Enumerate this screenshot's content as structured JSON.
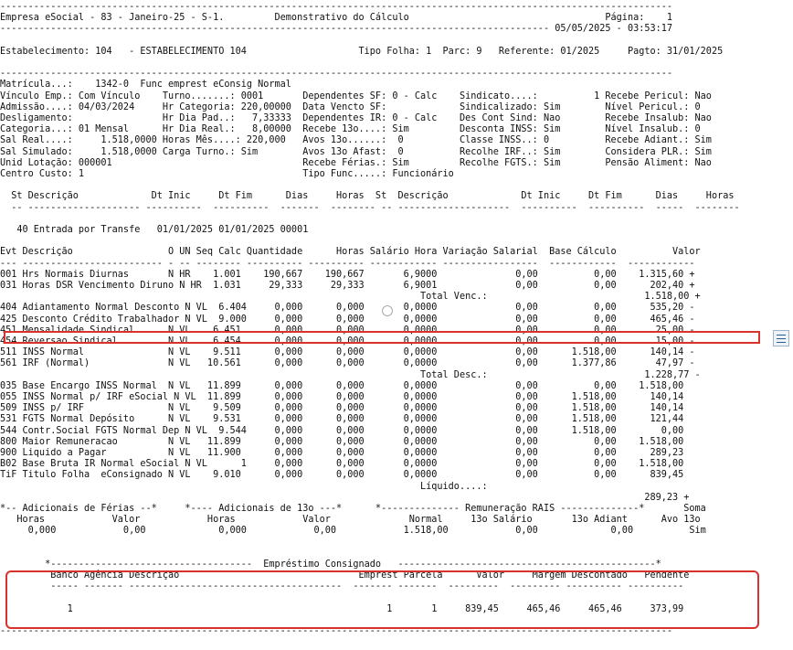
{
  "report": {
    "lines": [
      "------------------------------------------------------------------------------------------------------------------------",
      "Empresa eSocial - 83 - Janeiro-25 - S-1.         Demonstrativo do Cálculo                                   Página:    1",
      "-------------------------------------------------------------------------------------------------- 05/05/2025 - 03:53:17",
      "",
      "Estabelecimento: 104   - ESTABELECIMENTO 104                    Tipo Folha: 1  Parc: 9   Referente: 01/2025     Pagto: 31/01/2025",
      "",
      "------------------------------------------------------------------------------------------------------------------------",
      "Matrícula...:    1342-0  Func emprest eConsig Normal",
      "Vínculo Emp.: Com Vínculo    Turno.......: 0001       Dependentes SF: 0 - Calc    Sindicato....:          1 Recebe Pericul: Nao",
      "Admissão....: 04/03/2024     Hr Categoria: 220,00000  Data Vencto SF:             Sindicalizado: Sim        Nível Pericul.: 0",
      "Desligamento:                Hr Dia Pad..:   7,33333  Dependentes IR: 0 - Calc    Des Cont Sind: Nao        Recebe Insalub: Nao",
      "Categoria...: 01 Mensal      Hr Dia Real.:   8,00000  Recebe 13o....: Sim         Desconta INSS: Sim        Nível Insalub.: 0",
      "Sal Real....:     1.518,0000 Horas Mês....: 220,000   Avos 13o......:  0          Classe INSS..: 0          Recebe Adiant.: Sim",
      "Sal Simulado:     1.518,0000 Carga Turno.: Sim        Avos 13o Afast:  0          Recolhe IRF..: Sim        Considera PLR.: Sim",
      "Unid Lotação: 000001                                  Recebe Férias.: Sim         Recolhe FGTS.: Sim        Pensão Aliment: Nao",
      "Centro Custo: 1                                       Tipo Func.....: Funcionário",
      "",
      "  St Descrição             Dt Inic     Dt Fim      Dias     Horas  St  Descrição             Dt Inic     Dt Fim      Dias     Horas",
      "  -- -------------------- ----------  ----------  -------  -------- -- --------------------  ----------  ----------  -----  --------",
      "",
      "   40 Entrada por Transfe   01/01/2025 01/01/2025 00001",
      "",
      "Evt Descrição                 O UN Seq Calc Quantidade      Horas Salário Hora Variação Salarial  Base Cálculo          Valor",
      "--- ------------------------- - -- -------- ---------- ---------- ------------ -----------------  ------------  ------------",
      "001 Hrs Normais Diurnas       N HR    1.001    190,667    190,667       6,9000              0,00          0,00    1.315,60 +",
      "031 Horas DSR Vencimento Diruno N HR  1.031     29,333     29,333       6,9001              0,00          0,00      202,40 +",
      "                                                                           Total Venc.:                            1.518,00 +",
      "404 Adiantamento Normal Desconto N VL  6.404     0,000      0,000       0,0000              0,00          0,00      535,20 -",
      "425 Desconto Crédito Trabalhador N VL  9.000     0,000      0,000       0,0000              0,00          0,00      465,46 -",
      "451 Mensalidade Sindical      N VL    6.451      0,000      0,000       0,0000              0,00          0,00       25,00 -",
      "454 Reversao Sindical         N VL    6.454      0,000      0,000       0,0000              0,00          0,00       15,00 -",
      "511 INSS Normal               N VL    9.511      0,000      0,000       0,0000              0,00      1.518,00      140,14 -",
      "561 IRF (Normal)              N VL   10.561      0,000      0,000       0,0000              0,00      1.377,86       47,97 -",
      "                                                                           Total Desc.:                            1.228,77 -",
      "035 Base Encargo INSS Normal  N VL   11.899      0,000      0,000       0,0000              0,00          0,00    1.518,00",
      "055 INSS Normal p/ IRF eSocial N VL  11.899      0,000      0,000       0,0000              0,00      1.518,00      140,14",
      "509 INSS p/ IRF               N VL    9.509      0,000      0,000       0,0000              0,00      1.518,00      140,14",
      "531 FGTS Normal Depósito      N VL    9.531      0,000      0,000       0,0000              0,00      1.518,00      121,44",
      "544 Contr.Social FGTS Normal Dep N VL  9.544     0,000      0,000       0,0000              0,00      1.518,00        0,00",
      "800 Maior Remuneracao         N VL   11.899      0,000      0,000       0,0000              0,00          0,00    1.518,00",
      "900 Liquido a Pagar           N VL   11.900      0,000      0,000       0,0000              0,00          0,00      289,23",
      "B02 Base Bruta IR Normal eSocial N VL      1     0,000      0,000       0,0000              0,00          0,00    1.518,00",
      "TiF Titulo Folha  eConsignado N VL    9.010      0,000      0,000       0,0000              0,00          0,00      839,45",
      "                                                                           Líquido....:                                        ",
      "                                                                                                                   289,23 +",
      "*-- Adicionais de Férias --*     *---- Adicionais de 13o ---*      *-------------- Remuneração RAIS --------------*       Soma",
      "   Horas            Valor            Horas            Valor              Normal     13o Salário       13o Adiant      Avo 13o",
      "     0,000            0,00             0,000            0,00            1.518,00            0,00             0,00          Sim",
      "",
      "",
      "        *------------------------------------  Empréstimo Consignado   ----------------------------------------------*",
      "         Banco Agência Descrição                                Emprest Parcela      Valor     Margem Descontado   Pendente",
      "         ----- ------- --------------------------------------  ------- -------  ---------  --------- ---------- ----------",
      "",
      "            1                                                        1       1     839,45     465,46     465,46     373,99",
      "",
      "------------------------------------------------------------------------------------------------------------------------"
    ]
  }
}
